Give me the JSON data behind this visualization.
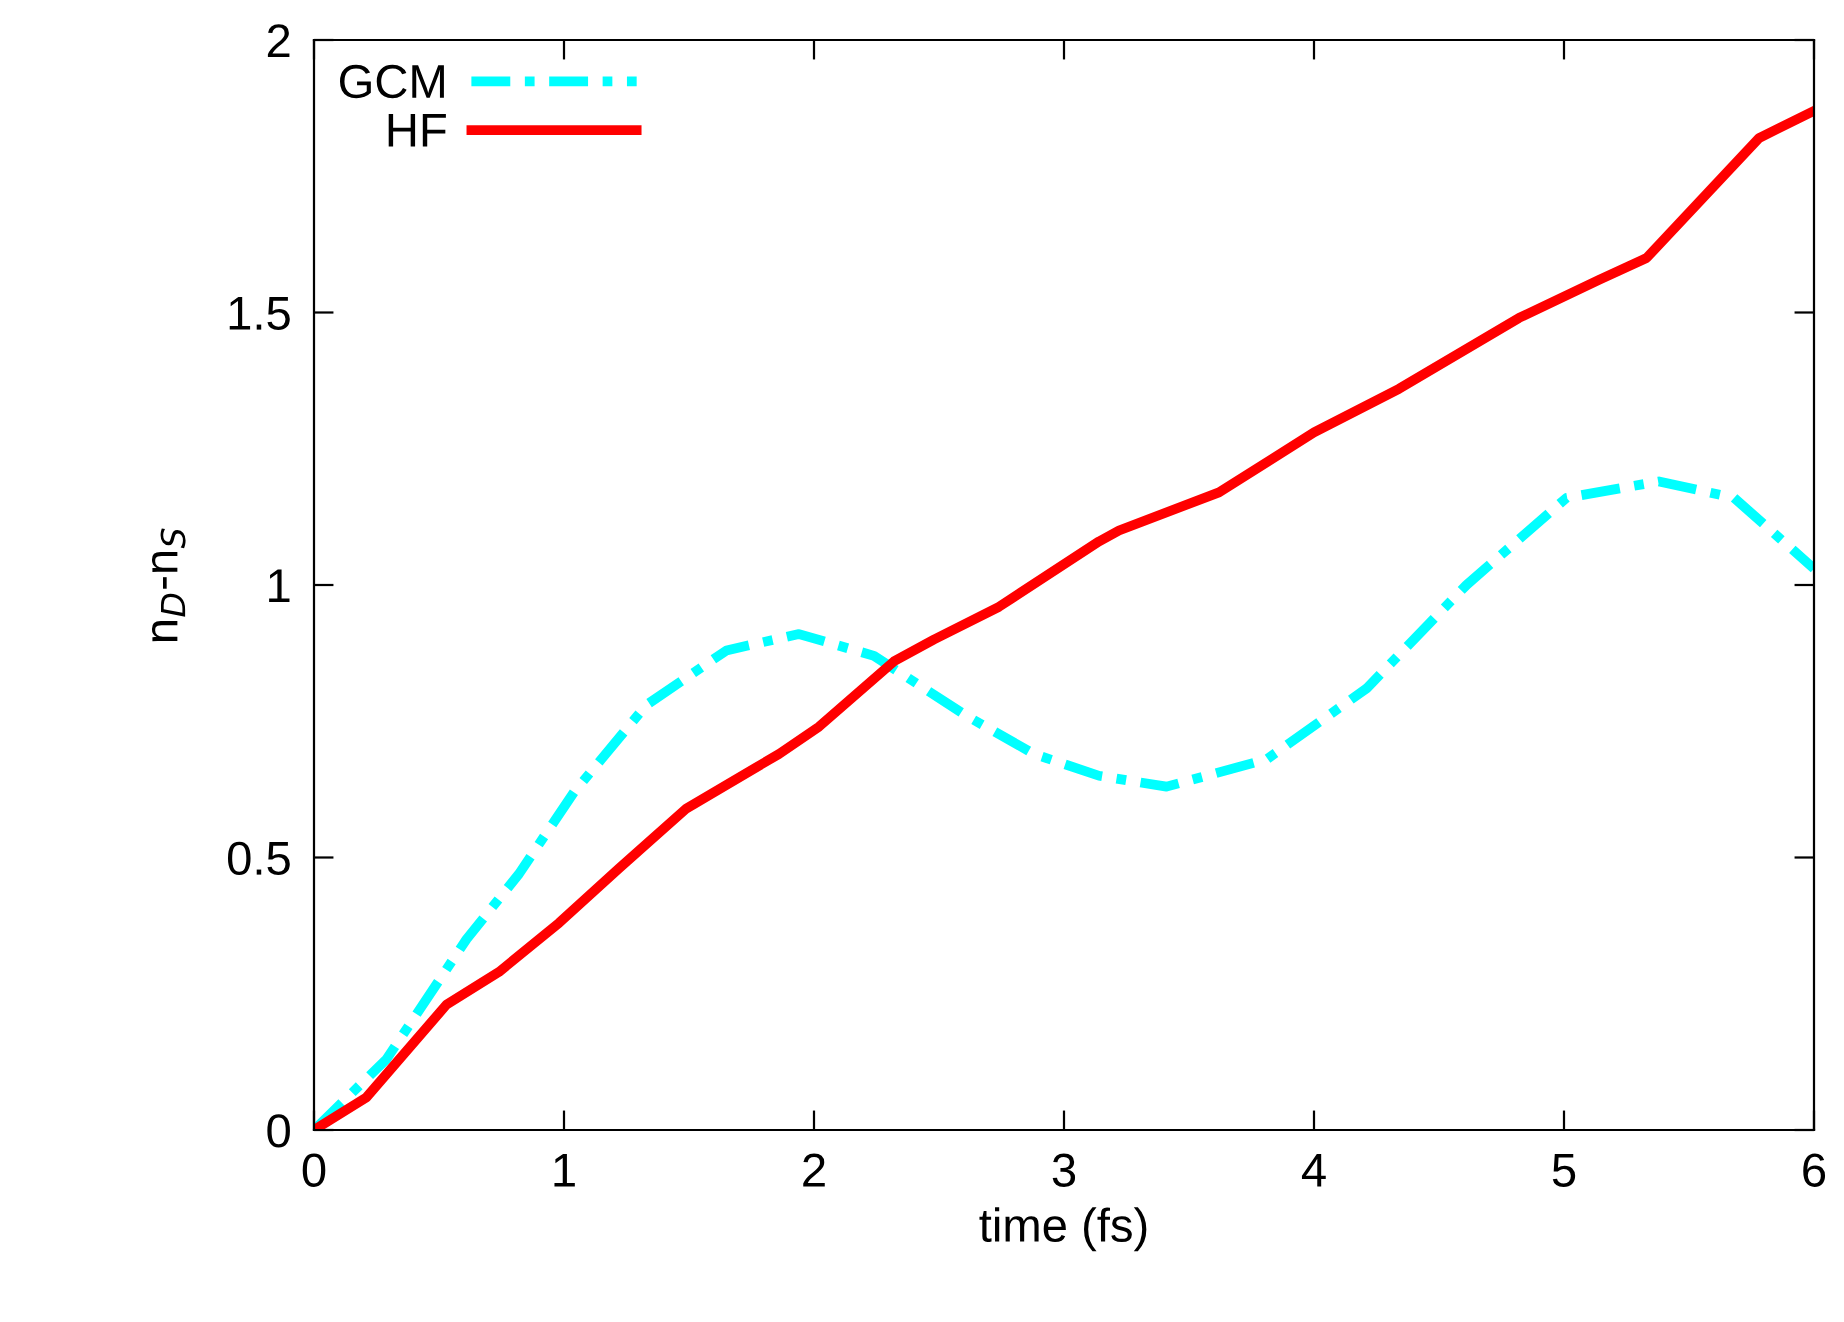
{
  "chart_data": {
    "type": "line",
    "xlabel": "time (fs)",
    "ylabel": "n$_{D}$-n$_{S}$",
    "xlim": [
      0,
      6
    ],
    "ylim": [
      0,
      2
    ],
    "xticks": [
      0,
      1,
      2,
      3,
      4,
      5,
      6
    ],
    "yticks": [
      0,
      0.5,
      1,
      1.5,
      2
    ],
    "grid": false,
    "legend": "top left",
    "marker": "none",
    "series": [
      {
        "name": "GCM",
        "color": "#00ffff",
        "line_style": "dashdot",
        "x": [
          0,
          0.29,
          0.61,
          0.82,
          1.04,
          1.33,
          1.65,
          1.94,
          2.24,
          2.61,
          2.88,
          3.14,
          3.41,
          3.81,
          4.21,
          4.61,
          5.01,
          5.38,
          5.68,
          6
        ],
        "values": [
          0,
          0.13,
          0.35,
          0.47,
          0.62,
          0.78,
          0.88,
          0.91,
          0.87,
          0.76,
          0.69,
          0.65,
          0.63,
          0.68,
          0.81,
          1.0,
          1.16,
          1.19,
          1.16,
          1.03
        ]
      },
      {
        "name": "HF",
        "color": "#ff0000",
        "line_style": "solid",
        "x": [
          0,
          0.21,
          0.53,
          0.74,
          0.98,
          1.22,
          1.49,
          1.86,
          2.02,
          2.32,
          2.48,
          2.74,
          3.14,
          3.22,
          3.62,
          4.0,
          4.34,
          4.82,
          5.14,
          5.33,
          5.78,
          6
        ],
        "values": [
          0,
          0.06,
          0.23,
          0.29,
          0.38,
          0.48,
          0.59,
          0.69,
          0.74,
          0.86,
          0.9,
          0.96,
          1.08,
          1.1,
          1.17,
          1.28,
          1.36,
          1.49,
          1.56,
          1.6,
          1.82,
          1.87
        ]
      }
    ]
  }
}
